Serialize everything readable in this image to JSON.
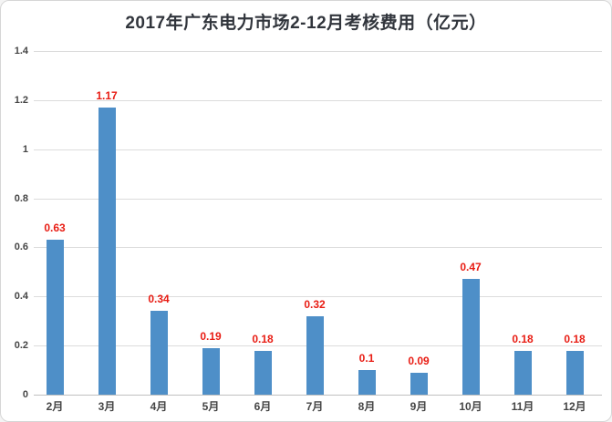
{
  "chart_data": {
    "type": "bar",
    "title": "2017年广东电力市场2-12月考核费用（亿元）",
    "categories": [
      "2月",
      "3月",
      "4月",
      "5月",
      "6月",
      "7月",
      "8月",
      "9月",
      "10月",
      "11月",
      "12月"
    ],
    "values": [
      0.63,
      1.17,
      0.34,
      0.19,
      0.18,
      0.32,
      0.1,
      0.09,
      0.47,
      0.18,
      0.18
    ],
    "value_labels": [
      "0.63",
      "1.17",
      "0.34",
      "0.19",
      "0.18",
      "0.32",
      "0.1",
      "0.09",
      "0.47",
      "0.18",
      "0.18"
    ],
    "xlabel": "",
    "ylabel": "",
    "ylim": [
      0,
      1.4
    ],
    "ytick_step": 0.2,
    "ytick_labels": [
      "0",
      "0.2",
      "0.4",
      "0.6",
      "0.8",
      "1",
      "1.2",
      "1.4"
    ],
    "grid": true,
    "legend": "none",
    "colors": {
      "bar": "#4e8fc8",
      "value_label": "#e81c13",
      "axis_label": "#454545",
      "gridline": "#dcdcdc",
      "title": "#31353c",
      "background": "#ffffff",
      "card_border": "#d6d6d6"
    }
  }
}
